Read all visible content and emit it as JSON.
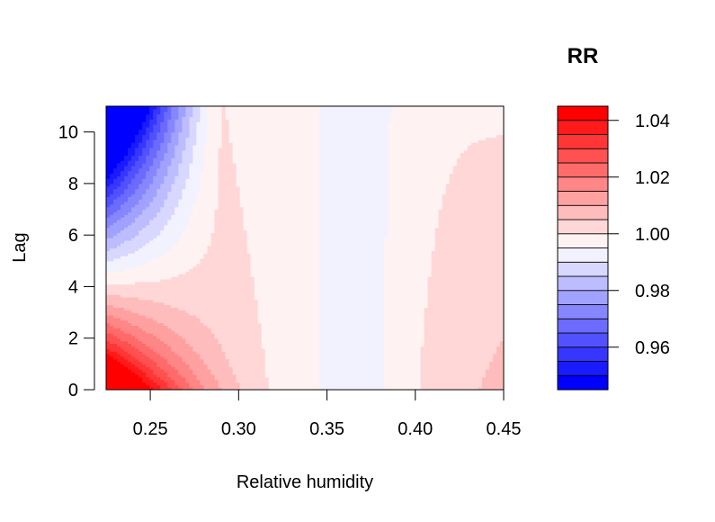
{
  "chart_data": {
    "type": "contour",
    "xlabel": "Relative humidity",
    "ylabel": "Lag",
    "xlim": [
      0.225,
      0.45
    ],
    "ylim": [
      0,
      11
    ],
    "x_ticks": [
      0.25,
      0.3,
      0.35,
      0.4,
      0.45
    ],
    "x_tick_labels": [
      "0.25",
      "0.30",
      "0.35",
      "0.40",
      "0.45"
    ],
    "y_ticks": [
      0,
      2,
      4,
      6,
      8,
      10
    ],
    "y_tick_labels": [
      "0",
      "2",
      "4",
      "6",
      "8",
      "10"
    ],
    "colorbar": {
      "title": "RR",
      "range": [
        0.945,
        1.045
      ],
      "levels": [
        0.945,
        0.95,
        0.955,
        0.96,
        0.965,
        0.97,
        0.975,
        0.98,
        0.985,
        0.99,
        0.995,
        1.0,
        1.005,
        1.01,
        1.015,
        1.02,
        1.025,
        1.03,
        1.035,
        1.04,
        1.045
      ],
      "ticks": [
        0.96,
        0.98,
        1.0,
        1.02,
        1.04
      ],
      "tick_labels": [
        "0.96",
        "0.98",
        "1.00",
        "1.02",
        "1.04"
      ],
      "low_color": "#0000FF",
      "mid_color": "#FFFFFF",
      "high_color": "#FF0000"
    },
    "grid": false,
    "surface_notes": {
      "max_RR_region": "low humidity (~0.225) at lag 0, RR ~1.04",
      "min_RR_region": "low humidity (~0.225) at lag 11, RR ~0.955",
      "null_line_RR": 1.0
    }
  }
}
